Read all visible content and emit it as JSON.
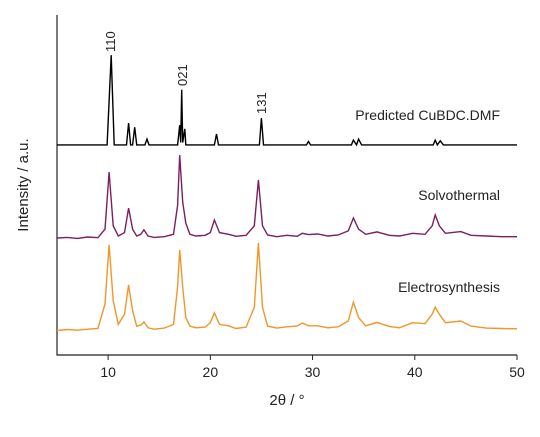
{
  "chart_data": {
    "type": "line",
    "xlabel": "2θ / °",
    "ylabel": "Intensity / a.u.",
    "xlim": [
      5,
      50
    ],
    "xticks": [
      10,
      20,
      30,
      40,
      50
    ],
    "ylim": [
      0,
      100
    ],
    "annotations": [
      "110",
      "021",
      "131"
    ],
    "series": [
      {
        "name": "Predicted CuBDC.DMF",
        "color": "#000000",
        "x": [
          5,
          9.9,
          10.3,
          10.6,
          11.8,
          12.0,
          12.2,
          12.4,
          12.6,
          12.8,
          13.6,
          13.8,
          14.0,
          16.8,
          17.0,
          17.1,
          17.2,
          17.3,
          17.5,
          17.6,
          17.8,
          20.4,
          20.6,
          20.8,
          24.8,
          25.0,
          25.2,
          29.4,
          29.6,
          29.8,
          33.8,
          34.0,
          34.3,
          34.5,
          34.8,
          41.8,
          42.0,
          42.2,
          42.5,
          42.8,
          50
        ],
        "values": [
          61.8,
          61.8,
          88.2,
          61.8,
          61.8,
          68.2,
          61.8,
          61.8,
          67,
          61.8,
          61.8,
          63.5,
          61.8,
          61.8,
          67.6,
          62.5,
          78,
          62.5,
          66.5,
          61.8,
          61.8,
          61.8,
          65,
          61.8,
          61.8,
          69.7,
          61.8,
          61.8,
          62.8,
          61.8,
          61.8,
          63.2,
          61.8,
          63.5,
          61.8,
          61.8,
          63.2,
          61.8,
          63,
          61.8,
          61.8
        ]
      },
      {
        "name": "Solvothermal",
        "color": "#7b1f5e",
        "x": [
          5,
          6,
          7,
          8,
          9,
          9.7,
          10.1,
          10.5,
          11,
          11.6,
          12,
          12.4,
          12.8,
          13.2,
          13.5,
          13.9,
          14.5,
          15.5,
          16.4,
          16.8,
          17.0,
          17.3,
          17.6,
          18,
          18.6,
          19.5,
          20,
          20.4,
          20.9,
          21.8,
          22.5,
          23.5,
          24.3,
          24.7,
          25.1,
          25.6,
          26.5,
          27.5,
          28.5,
          29,
          29.6,
          30.5,
          31.5,
          32.5,
          33.5,
          34,
          34.5,
          35.2,
          36.3,
          37.5,
          38.5,
          39.8,
          41,
          41.7,
          42,
          42.4,
          43,
          44.5,
          45.5,
          47,
          48.5,
          50
        ],
        "values": [
          34.4,
          34.6,
          34.3,
          34.7,
          34.5,
          37,
          53.8,
          38,
          35,
          36,
          43.2,
          37,
          35,
          35.5,
          36.8,
          35,
          34.6,
          34.8,
          35.5,
          44,
          58.8,
          45,
          38.8,
          35.5,
          35,
          35.2,
          36,
          39.7,
          36,
          35.5,
          34.9,
          35.2,
          38,
          51.5,
          38,
          35.3,
          34.8,
          35.2,
          34.9,
          35.8,
          35.4,
          35.6,
          35,
          35.3,
          36.5,
          40.3,
          37,
          35.5,
          36.2,
          35.2,
          35,
          35.8,
          35.5,
          38,
          41.2,
          38,
          35.8,
          36.3,
          35.2,
          35,
          34.8,
          34.8
        ]
      },
      {
        "name": "Electrosynthesis",
        "color": "#f0962a",
        "x": [
          5,
          6,
          7,
          8,
          9,
          9.7,
          10.1,
          10.5,
          11,
          11.6,
          12,
          12.4,
          12.8,
          13.2,
          13.5,
          13.9,
          14.5,
          15.5,
          16.4,
          16.8,
          17.0,
          17.3,
          17.6,
          18,
          18.6,
          19.5,
          20,
          20.4,
          20.9,
          21.8,
          22.5,
          23.5,
          24.3,
          24.7,
          25.1,
          25.6,
          26.5,
          27.5,
          28.5,
          29,
          29.6,
          30.5,
          31.5,
          32.5,
          33.5,
          34,
          34.5,
          35.2,
          36.3,
          37.5,
          38.5,
          39.8,
          41,
          41.7,
          42,
          42.4,
          43,
          44.5,
          45.5,
          47,
          48.5,
          50
        ],
        "values": [
          7.2,
          7.5,
          7.3,
          7.6,
          7.8,
          15,
          32.4,
          16,
          9,
          12,
          20.6,
          13,
          8.5,
          8.8,
          9.7,
          8,
          7.6,
          7.9,
          9,
          20,
          30.9,
          20,
          11,
          8.5,
          8,
          8.2,
          9.5,
          12.4,
          9,
          8.6,
          7.8,
          8.2,
          14,
          32.9,
          14,
          8.5,
          7.9,
          8.3,
          8.5,
          9.4,
          8.6,
          8.6,
          8,
          8.3,
          10,
          15.6,
          11,
          8.6,
          9.6,
          8.4,
          8,
          9.5,
          9.2,
          12,
          14.1,
          12,
          9.5,
          10,
          8.5,
          7.9,
          7.8,
          7.7
        ]
      }
    ]
  }
}
